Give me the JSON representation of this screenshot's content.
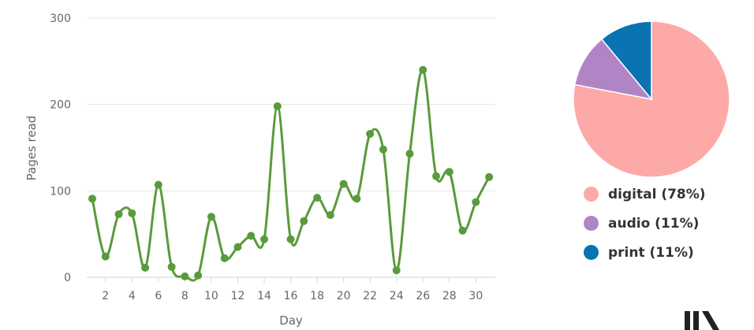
{
  "chart_data": [
    {
      "type": "line",
      "xlabel": "Day",
      "ylabel": "Pages read",
      "ylim": [
        0,
        300
      ],
      "yticks": [
        0,
        100,
        200,
        300
      ],
      "xticks": [
        2,
        4,
        6,
        8,
        10,
        12,
        14,
        16,
        18,
        20,
        22,
        24,
        26,
        28,
        30
      ],
      "grid": true,
      "color": "#5a9a3c",
      "x": [
        1,
        2,
        3,
        4,
        5,
        6,
        7,
        8,
        9,
        10,
        11,
        12,
        13,
        14,
        15,
        16,
        17,
        18,
        19,
        20,
        21,
        22,
        23,
        24,
        25,
        26,
        27,
        28,
        29,
        30,
        31
      ],
      "y": [
        91,
        24,
        73,
        74,
        11,
        107,
        12,
        1,
        2,
        70,
        22,
        35,
        48,
        44,
        198,
        44,
        65,
        92,
        72,
        108,
        91,
        166,
        148,
        8,
        143,
        240,
        117,
        122,
        54,
        87,
        116
      ]
    },
    {
      "type": "pie",
      "legend_position": "bottom",
      "slices": [
        {
          "label": "digital (78%)",
          "value": 78,
          "color": "#fda9a7"
        },
        {
          "label": "audio (11%)",
          "value": 11,
          "color": "#b184c6"
        },
        {
          "label": "print (11%)",
          "value": 11,
          "color": "#0a73b1"
        }
      ]
    }
  ]
}
